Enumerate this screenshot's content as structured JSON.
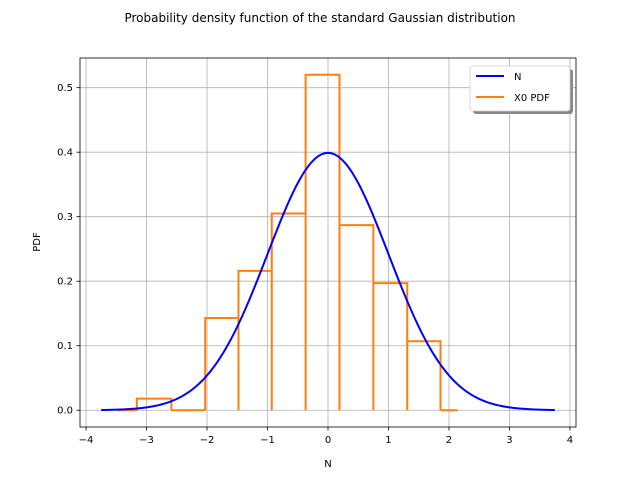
{
  "chart_data": {
    "type": "line",
    "title": "Probability density function of the standard Gaussian distribution",
    "xlabel": "N",
    "ylabel": "PDF",
    "xlim": [
      -4.1,
      4.1
    ],
    "ylim": [
      -0.026,
      0.546
    ],
    "xticks": [
      -4,
      -3,
      -2,
      -1,
      0,
      1,
      2,
      3,
      4
    ],
    "yticks": [
      0.0,
      0.1,
      0.2,
      0.3,
      0.4,
      0.5
    ],
    "xtick_labels": [
      "−4",
      "−3",
      "−2",
      "−1",
      "0",
      "1",
      "2",
      "3",
      "4"
    ],
    "ytick_labels": [
      "0.0",
      "0.1",
      "0.2",
      "0.3",
      "0.4",
      "0.5"
    ],
    "grid": true,
    "legend_position": "top-right",
    "series": [
      {
        "name": "N",
        "kind": "curve",
        "color": "#0000ff",
        "x_range": [
          -3.75,
          3.75
        ],
        "mean": 0,
        "std": 1
      },
      {
        "name": "X0 PDF",
        "kind": "step-histogram",
        "color": "#ff7f0e",
        "bin_edges": [
          -3.48,
          -3.16,
          -2.59,
          -2.03,
          -1.48,
          -0.93,
          -0.37,
          0.19,
          0.75,
          1.31,
          1.86,
          2.14
        ],
        "values": [
          0.0,
          0.018,
          0.0,
          0.143,
          0.216,
          0.305,
          0.52,
          0.287,
          0.197,
          0.107,
          0.0
        ]
      }
    ]
  }
}
